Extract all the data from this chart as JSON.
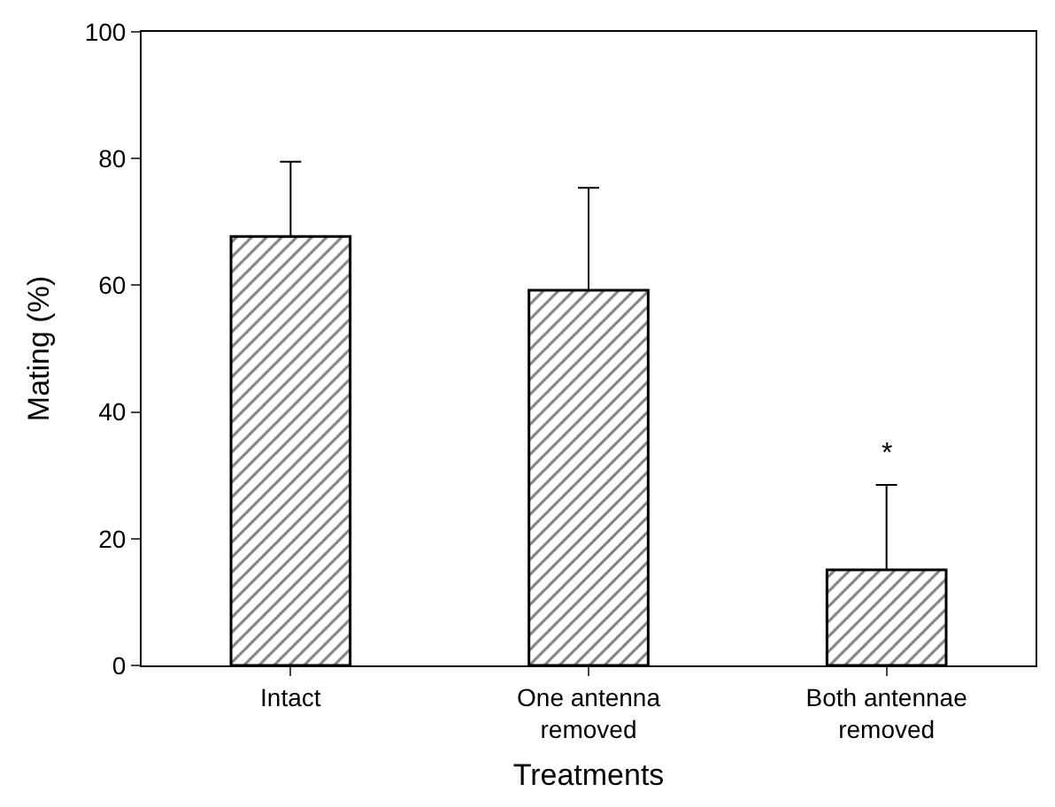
{
  "chart_data": {
    "type": "bar",
    "xlabel": "Treatments",
    "ylabel": "Mating (%)",
    "categories": [
      "Intact",
      "One antenna\nremoved",
      "Both antennae\nremoved"
    ],
    "values": [
      67.7,
      59.2,
      15.1
    ],
    "errors": [
      [
        67.7,
        79.5
      ],
      [
        59.2,
        75.4
      ],
      [
        15.1,
        28.5
      ]
    ],
    "color": "#000000",
    "ylim": [
      0,
      100
    ],
    "yticks": [
      0,
      20,
      40,
      60,
      80,
      100
    ],
    "grid": false,
    "legend": false,
    "annotations": [
      "*"
    ]
  }
}
